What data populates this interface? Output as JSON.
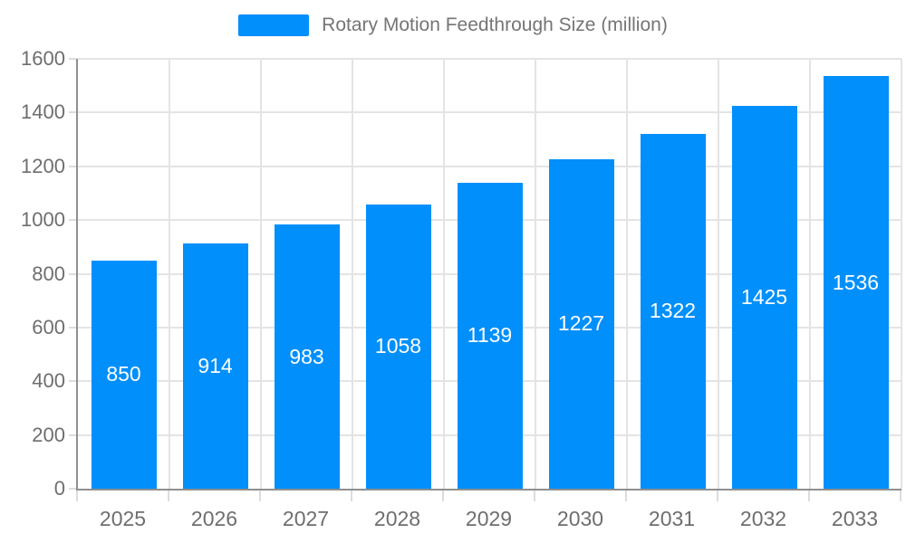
{
  "legend": {
    "label": "Rotary Motion Feedthrough Size (million)",
    "swatch_color": "#008FFB"
  },
  "chart_data": {
    "type": "bar",
    "title": "Rotary Motion Feedthrough Size (million)",
    "categories": [
      "2025",
      "2026",
      "2027",
      "2028",
      "2029",
      "2030",
      "2031",
      "2032",
      "2033"
    ],
    "series": [
      {
        "name": "Rotary Motion Feedthrough Size (million)",
        "values": [
          850,
          914,
          983,
          1058,
          1139,
          1227,
          1322,
          1425,
          1536
        ]
      }
    ],
    "xlabel": "",
    "ylabel": "",
    "ylim": [
      0,
      1600
    ],
    "ytick_step": 200,
    "yticks": [
      0,
      200,
      400,
      600,
      800,
      1000,
      1200,
      1400,
      1600
    ],
    "grid": true,
    "legend_position": "top",
    "colors": {
      "bar": "#008FFB",
      "bar_label_text": "#ffffff",
      "grid_line": "#e4e4e4",
      "axis_line": "#8f8f8f",
      "axis_text": "#6e6e6e",
      "legend_text": "#757575"
    }
  }
}
